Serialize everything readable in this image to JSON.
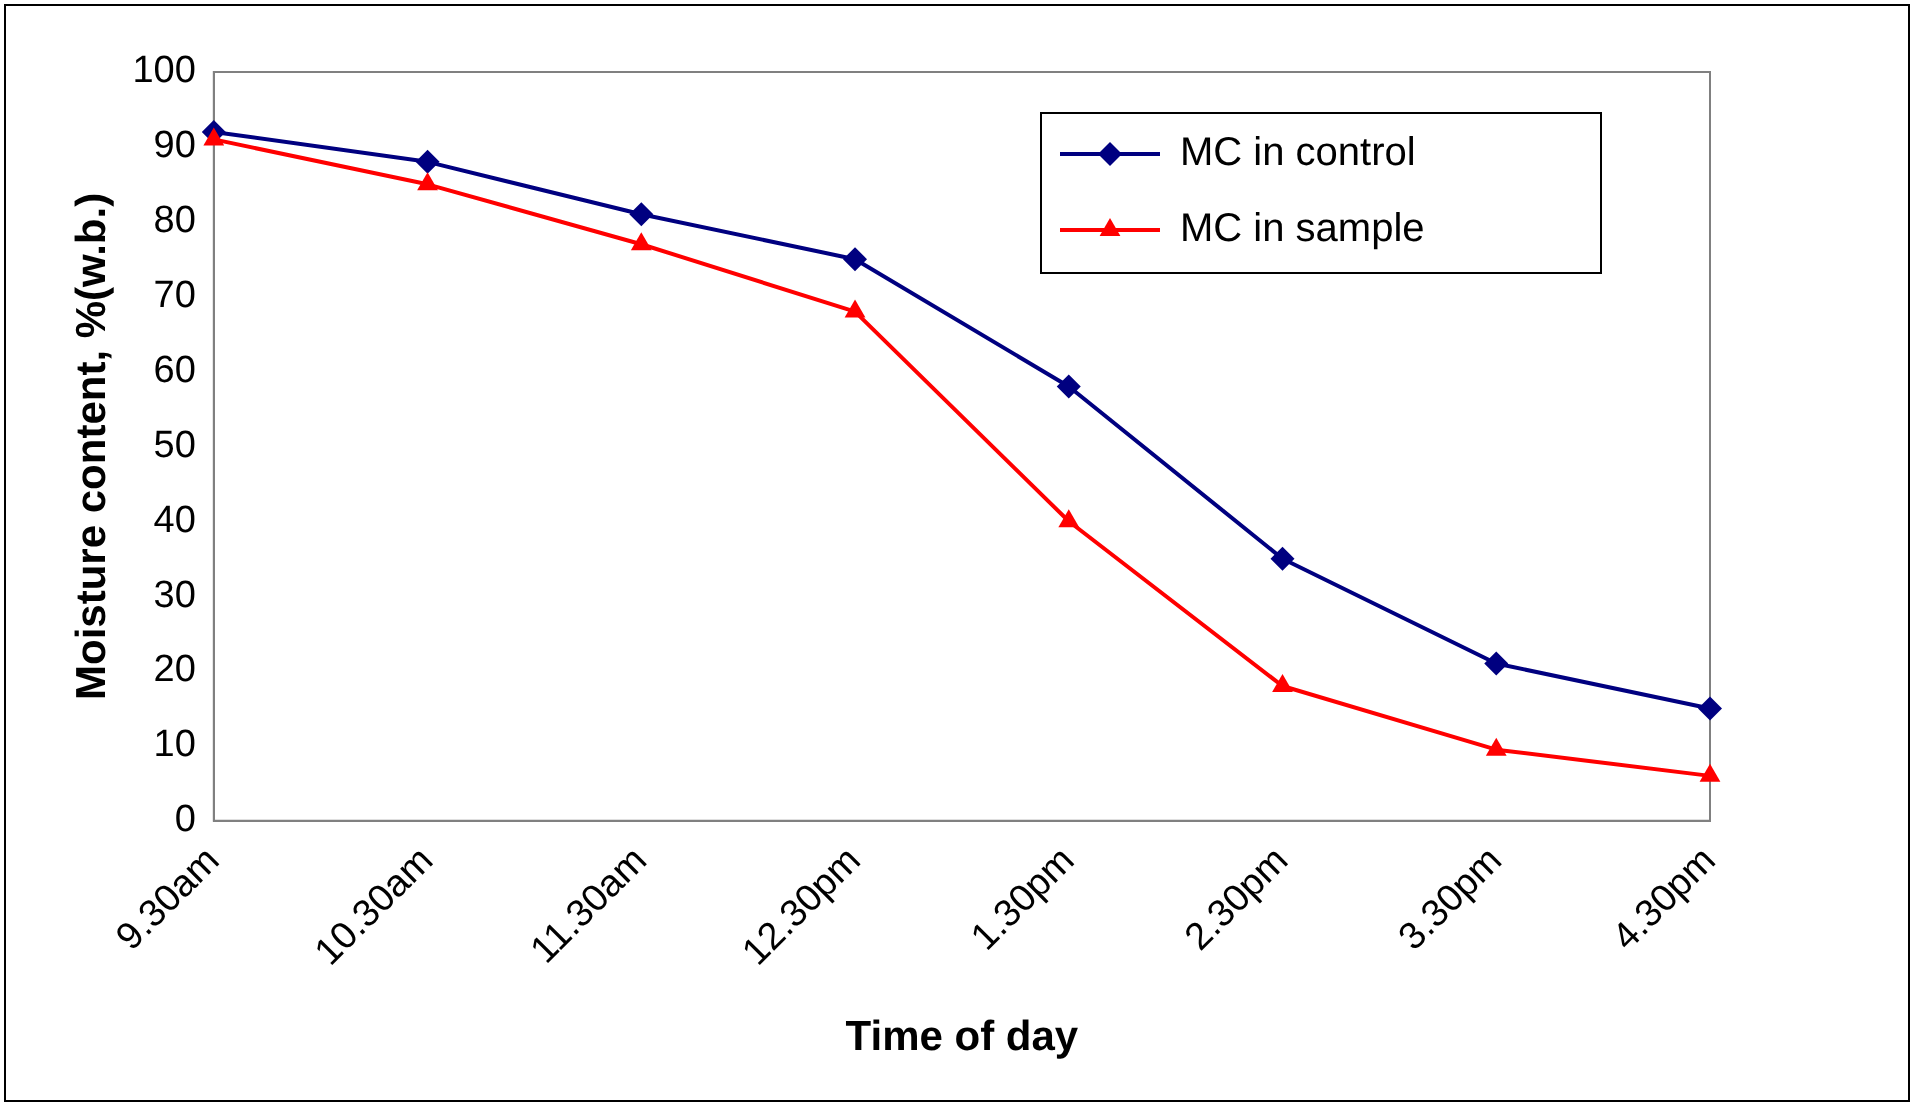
{
  "chart_data": {
    "type": "line",
    "xlabel": "Time of day",
    "ylabel": "Moisture content, %(w.b.)",
    "categories": [
      "9.30am",
      "10.30am",
      "11.30am",
      "12.30pm",
      "1.30pm",
      "2.30pm",
      "3.30pm",
      "4.30pm"
    ],
    "series": [
      {
        "name": "MC in control",
        "color": "#000080",
        "marker": "diamond",
        "values": [
          92,
          88,
          81,
          75,
          58,
          35,
          21,
          15
        ]
      },
      {
        "name": "MC in sample",
        "color": "#ff0000",
        "marker": "triangle",
        "values": [
          91,
          85,
          77,
          68,
          40,
          18,
          9.5,
          6
        ]
      }
    ],
    "ylim": [
      0,
      100
    ],
    "yticks": [
      0,
      10,
      20,
      30,
      40,
      50,
      60,
      70,
      80,
      90,
      100
    ],
    "grid": false,
    "legend": "top right",
    "line_style": "solid"
  }
}
